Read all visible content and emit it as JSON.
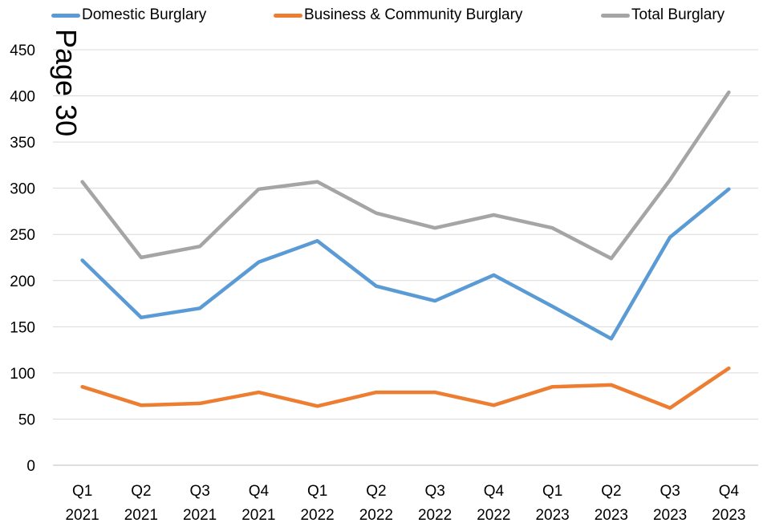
{
  "page_stamp": "Page 30",
  "chart_data": {
    "type": "line",
    "title": "",
    "xlabel": "",
    "ylabel": "",
    "ylim": [
      0,
      450
    ],
    "yticks": [
      0,
      50,
      100,
      150,
      200,
      250,
      300,
      350,
      400,
      450
    ],
    "grid": true,
    "legend_position": "top",
    "categories": [
      [
        "Q1",
        "2021"
      ],
      [
        "Q2",
        "2021"
      ],
      [
        "Q3",
        "2021"
      ],
      [
        "Q4",
        "2021"
      ],
      [
        "Q1",
        "2022"
      ],
      [
        "Q2",
        "2022"
      ],
      [
        "Q3",
        "2022"
      ],
      [
        "Q4",
        "2022"
      ],
      [
        "Q1",
        "2023"
      ],
      [
        "Q2",
        "2023"
      ],
      [
        "Q3",
        "2023"
      ],
      [
        "Q4",
        "2023"
      ]
    ],
    "series": [
      {
        "name": "Domestic Burglary",
        "color": "#5b9bd5",
        "values": [
          222,
          160,
          170,
          220,
          243,
          194,
          178,
          206,
          172,
          137,
          247,
          299
        ]
      },
      {
        "name": "Business & Community Burglary",
        "color": "#ed7d31",
        "values": [
          85,
          65,
          67,
          79,
          64,
          79,
          79,
          65,
          85,
          87,
          62,
          105
        ]
      },
      {
        "name": "Total Burglary",
        "color": "#a5a5a5",
        "values": [
          307,
          225,
          237,
          299,
          307,
          273,
          257,
          271,
          257,
          224,
          309,
          404
        ]
      }
    ]
  }
}
